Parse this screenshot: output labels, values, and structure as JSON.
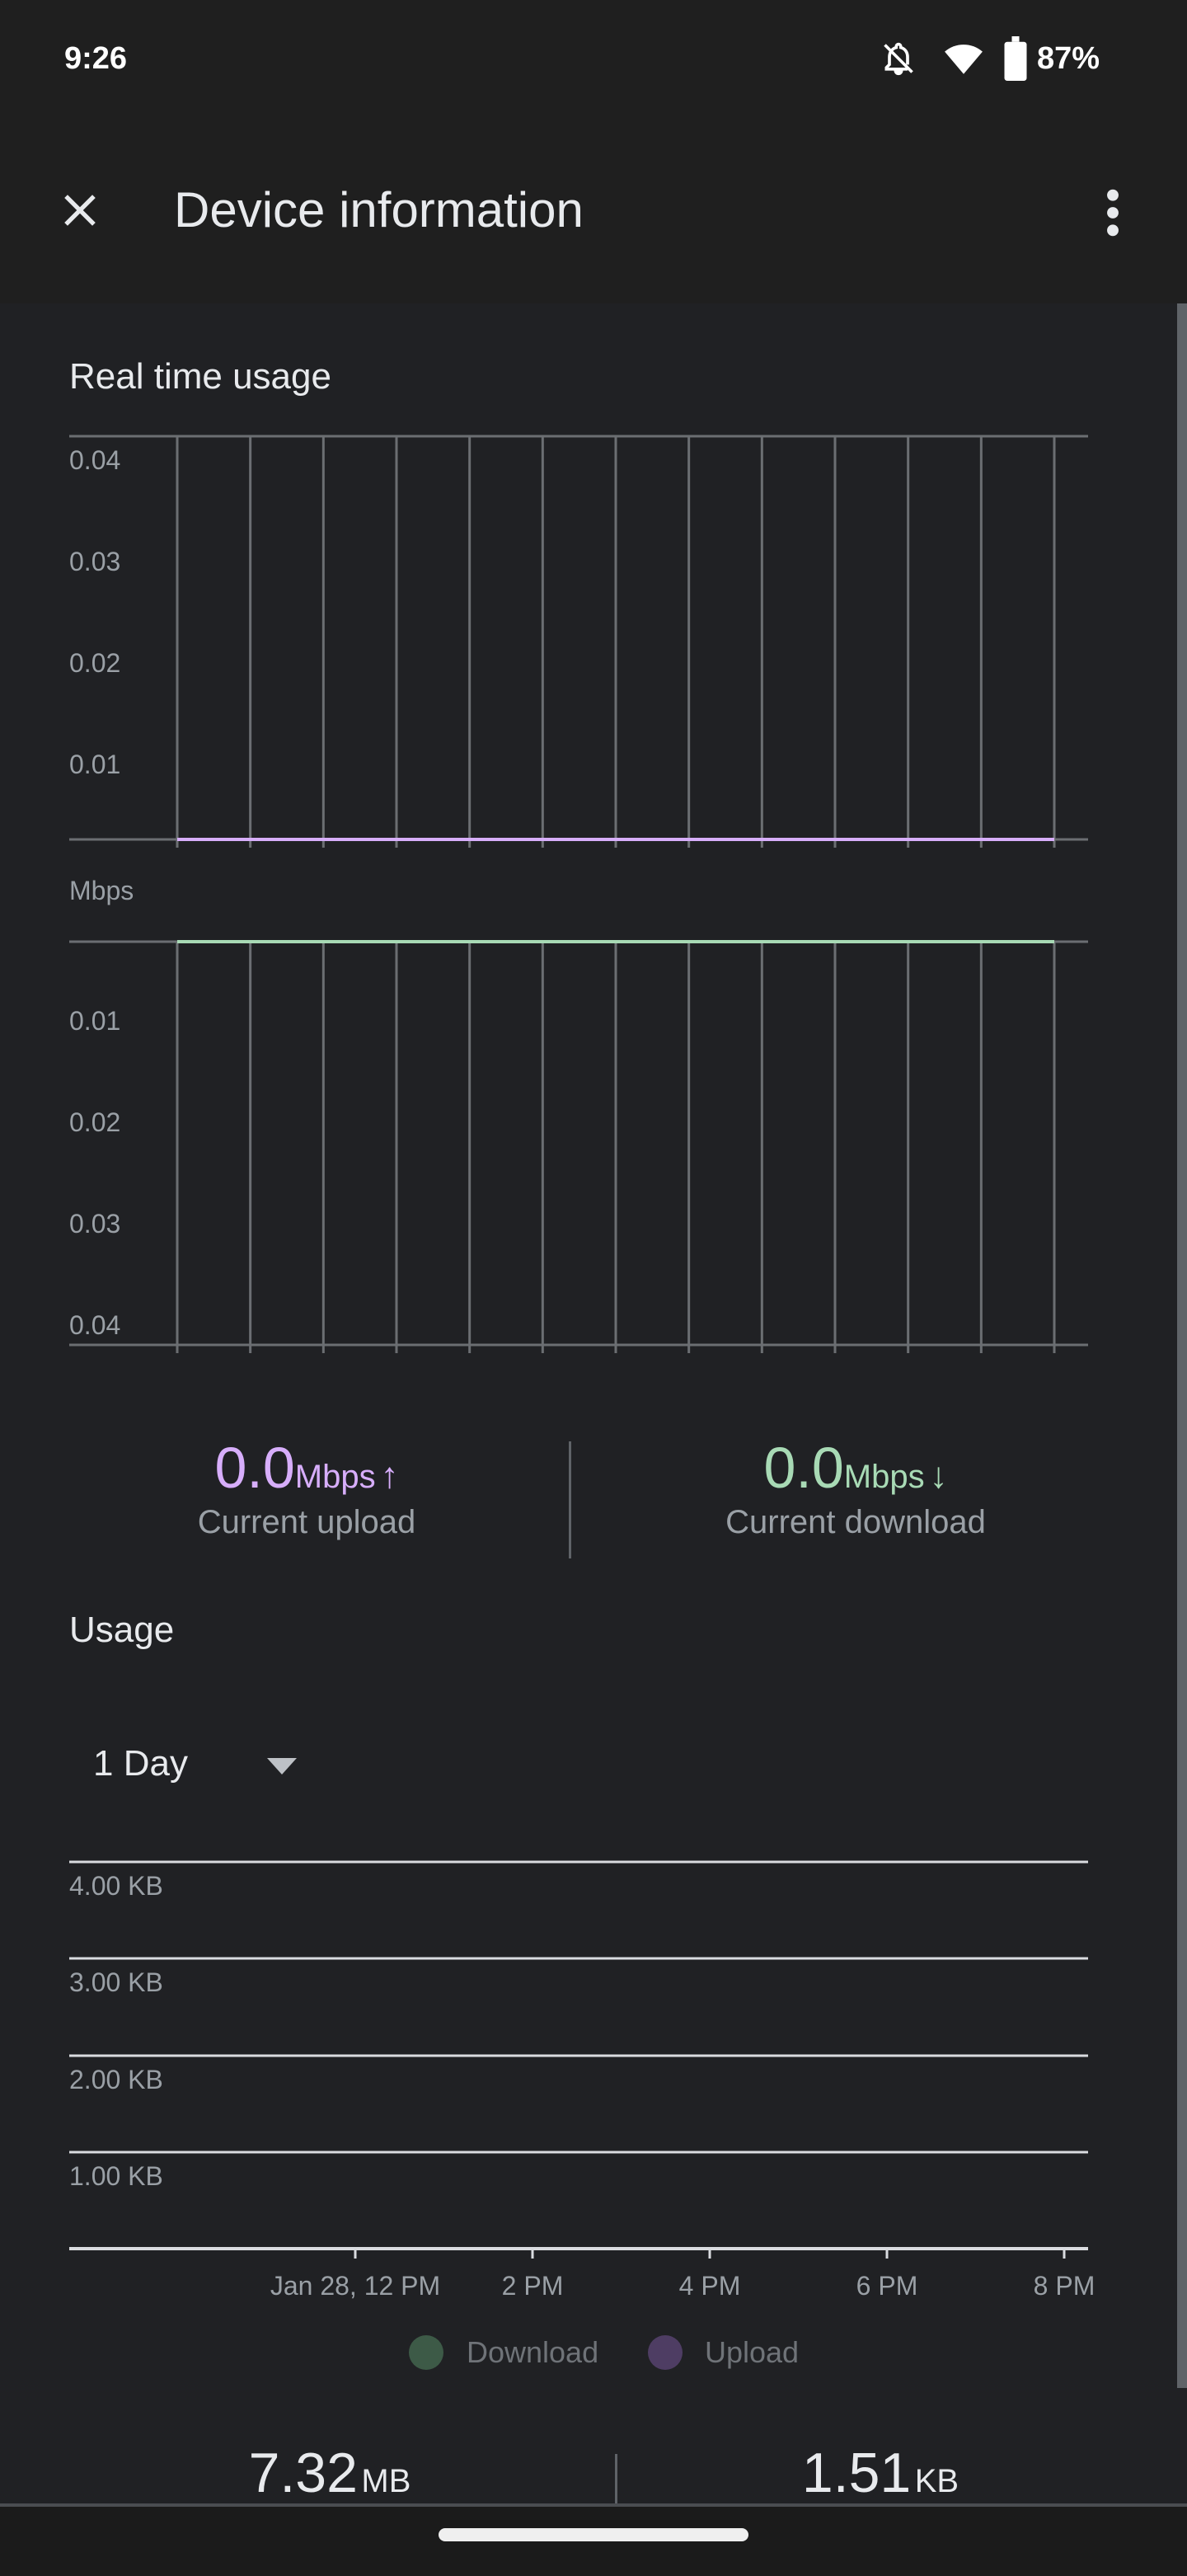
{
  "status_bar": {
    "time": "9:26",
    "battery": "87%",
    "icons": [
      "notifications-off-icon",
      "wifi-icon",
      "battery-icon"
    ]
  },
  "app_bar": {
    "title": "Device information",
    "close_icon": "close-icon",
    "menu_icon": "more-vert-icon"
  },
  "realtime": {
    "title": "Real time usage",
    "unit_label": "Mbps",
    "current_upload": {
      "value": "0.0",
      "unit": "Mbps",
      "arrow": "↑",
      "label": "Current upload",
      "color": "#d7aefb"
    },
    "current_download": {
      "value": "0.0",
      "unit": "Mbps",
      "arrow": "↓",
      "label": "Current download",
      "color": "#a8dab5"
    }
  },
  "usage": {
    "title": "Usage",
    "period": "1 Day",
    "legend": [
      {
        "label": "Download",
        "color": "#3d5a47"
      },
      {
        "label": "Upload",
        "color": "#4e3d63"
      }
    ],
    "totals": [
      {
        "value": "7.32",
        "unit": "MB"
      },
      {
        "value": "1.51",
        "unit": "KB"
      }
    ]
  },
  "chart_data": [
    {
      "type": "line",
      "title": "Real time usage",
      "ylabel": "Mbps",
      "series": [
        {
          "name": "Upload",
          "values": [
            0,
            0,
            0,
            0,
            0,
            0,
            0,
            0,
            0,
            0,
            0,
            0,
            0
          ],
          "color": "#d7aefb"
        }
      ],
      "yticks": [
        "0.04",
        "0.03",
        "0.02",
        "0.01"
      ],
      "ylim": [
        0,
        0.04
      ],
      "grid": true
    },
    {
      "type": "line",
      "ylabel": "Mbps",
      "inverted": true,
      "series": [
        {
          "name": "Download",
          "values": [
            0,
            0,
            0,
            0,
            0,
            0,
            0,
            0,
            0,
            0,
            0,
            0,
            0
          ],
          "color": "#a8dab5"
        }
      ],
      "yticks": [
        "0.01",
        "0.02",
        "0.03",
        "0.04"
      ],
      "ylim": [
        0,
        0.04
      ],
      "grid": true
    },
    {
      "type": "bar",
      "yticks": [
        "4.00 KB",
        "3.00 KB",
        "2.00 KB",
        "1.00 KB"
      ],
      "ylim": [
        0,
        4
      ],
      "xticks": [
        "Jan 28, 12 PM",
        "2 PM",
        "4 PM",
        "6 PM",
        "8 PM"
      ],
      "series": [
        {
          "name": "Download",
          "values": []
        },
        {
          "name": "Upload",
          "values": []
        }
      ],
      "grid": true
    }
  ]
}
